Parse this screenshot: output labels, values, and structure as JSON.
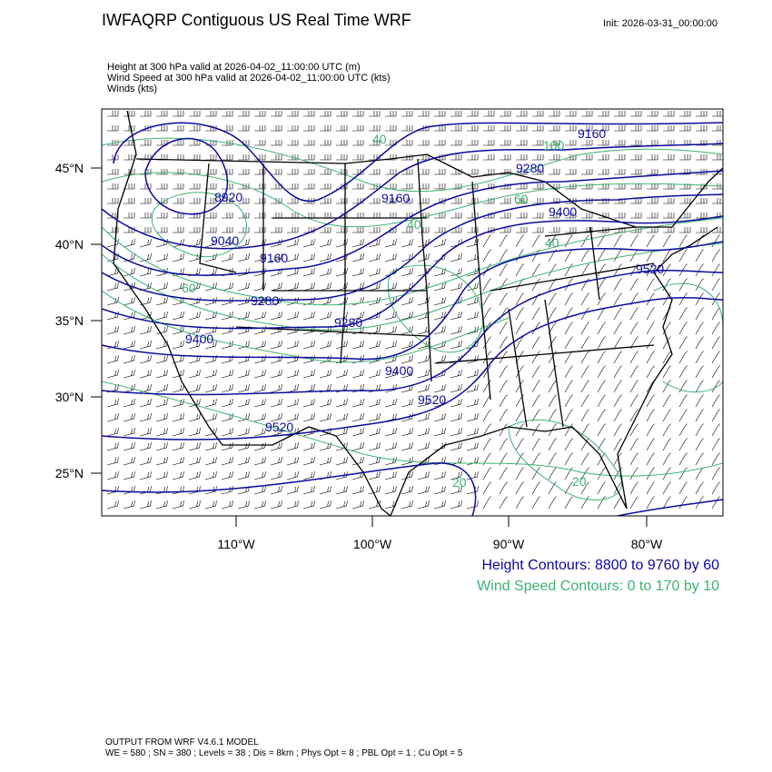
{
  "header": {
    "title": "IWFAQRP Contiguous US Real Time WRF",
    "init": "Init: 2026-03-31_00:00:00",
    "fields": [
      "Height at 300 hPa valid at 2026-04-02_11:00:00 UTC   (m)",
      "Wind Speed at 300 hPa valid at 2026-04-02_11:00:00 UTC   (kts)",
      "Winds   (kts)"
    ]
  },
  "map": {
    "lat_labels": [
      "45°N",
      "40°N",
      "35°N",
      "30°N",
      "25°N"
    ],
    "lon_labels": [
      "110°W",
      "100°W",
      "90°W",
      "80°W"
    ],
    "height_contour_labels": [
      "8920",
      "9040",
      "9160",
      "9160",
      "9280",
      "9280",
      "9400",
      "9400",
      "9520",
      "9520",
      "9160",
      "9280",
      "9400",
      "9520"
    ],
    "wind_contour_labels": [
      "100",
      "40",
      "40",
      "60",
      "40",
      "20",
      "20",
      "60"
    ],
    "colors": {
      "height_contours": "#0a0a9e",
      "wind_contours": "#3cb371",
      "borders": "#000000",
      "barbs": "#000000"
    }
  },
  "legend": {
    "height": "Height Contours: 8800 to 9760 by 60",
    "wind": "Wind Speed Contours: 0 to 170 by 10"
  },
  "footer": {
    "line1": "OUTPUT FROM WRF V4.6.1 MODEL",
    "line2": "WE = 580 ; SN = 380 ; Levels = 38 ; Dis = 8km ; Phys Opt = 8 ; PBL Opt = 1 ; Cu Opt = 5"
  }
}
